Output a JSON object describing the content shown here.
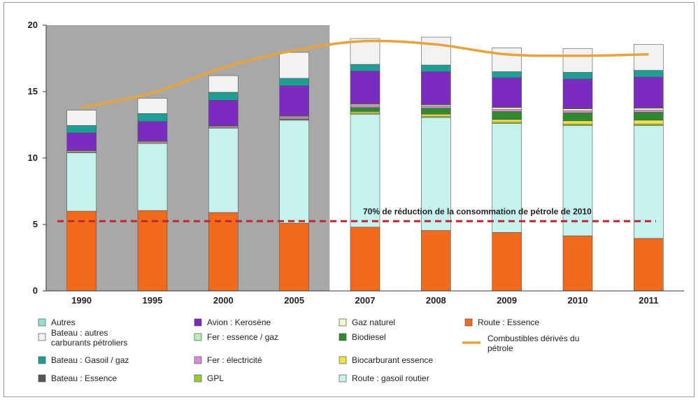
{
  "chart_data": {
    "type": "bar",
    "stacked": true,
    "categories": [
      "1990",
      "1995",
      "2000",
      "2005",
      "2007",
      "2008",
      "2009",
      "2010",
      "2011"
    ],
    "ylim": [
      0,
      20
    ],
    "yticks": [
      0,
      5,
      10,
      15,
      20
    ],
    "ytick_labels": [
      "0",
      "5",
      "10",
      "15",
      "20"
    ],
    "grid": false,
    "shaded_region_categories": [
      "1990",
      "1995",
      "2000",
      "2005"
    ],
    "series": [
      {
        "name": "Route : Essence",
        "color": "#f26a1b",
        "values": [
          6.0,
          6.05,
          5.9,
          5.1,
          4.8,
          4.55,
          4.4,
          4.15,
          3.95
        ]
      },
      {
        "name": "Route : gasoil routier",
        "color": "#c6f2ee",
        "values": [
          4.4,
          5.05,
          6.35,
          7.75,
          8.5,
          8.5,
          8.2,
          8.3,
          8.5
        ]
      },
      {
        "name": "GPL",
        "color": "#9acd32",
        "values": [
          0.0,
          0.0,
          0.0,
          0.0,
          0.1,
          0.1,
          0.1,
          0.1,
          0.1
        ]
      },
      {
        "name": "Biocarburant essence",
        "color": "#f2e04a",
        "values": [
          0.05,
          0.05,
          0.05,
          0.05,
          0.1,
          0.15,
          0.2,
          0.25,
          0.3
        ]
      },
      {
        "name": "Biodiesel",
        "color": "#2f8a2f",
        "values": [
          0.0,
          0.0,
          0.0,
          0.05,
          0.3,
          0.45,
          0.6,
          0.6,
          0.6
        ]
      },
      {
        "name": "Fer : essence / gaz",
        "color": "#b6f0b6",
        "values": [
          0.0,
          0.0,
          0.0,
          0.0,
          0.0,
          0.0,
          0.0,
          0.0,
          0.0
        ]
      },
      {
        "name": "Fer : électricité",
        "color": "#d58fd6",
        "values": [
          0.1,
          0.1,
          0.1,
          0.15,
          0.15,
          0.15,
          0.15,
          0.15,
          0.15
        ]
      },
      {
        "name": "Gaz naturel",
        "color": "#f8f4c8",
        "values": [
          0.0,
          0.0,
          0.0,
          0.05,
          0.1,
          0.1,
          0.15,
          0.15,
          0.15
        ]
      },
      {
        "name": "Bateau : Essence",
        "color": "#555555",
        "values": [
          0.05,
          0.05,
          0.05,
          0.05,
          0.05,
          0.05,
          0.05,
          0.05,
          0.05
        ]
      },
      {
        "name": "Avion : Kerosène",
        "color": "#7b2bc0",
        "values": [
          1.3,
          1.45,
          1.9,
          2.25,
          2.45,
          2.45,
          2.2,
          2.2,
          2.3
        ]
      },
      {
        "name": "Bateau : Gasoil / gaz",
        "color": "#1e9e94",
        "values": [
          0.55,
          0.6,
          0.6,
          0.55,
          0.5,
          0.5,
          0.45,
          0.5,
          0.5
        ]
      },
      {
        "name": "Autres",
        "color": "#8fe3d6",
        "values": [
          0.0,
          0.0,
          0.0,
          0.0,
          0.0,
          0.0,
          0.0,
          0.0,
          0.0
        ]
      },
      {
        "name": "Bateau : autres carburants pétroliers",
        "color": "#f2f2f2",
        "values": [
          1.15,
          1.15,
          1.25,
          1.95,
          1.95,
          2.1,
          1.8,
          1.8,
          1.95
        ]
      }
    ],
    "line_series": {
      "name": "Combustibles dérivés du pétrole",
      "color": "#e8a33a",
      "values": [
        13.8,
        14.9,
        16.8,
        18.1,
        18.8,
        18.55,
        17.8,
        17.7,
        17.8
      ]
    },
    "reference_line": {
      "value": 5.25,
      "color": "#c0282d",
      "label": "70% de réduction de la consommation de pétrole de 2010"
    },
    "legend_columns": [
      [
        "Autres",
        "Bateau : autres carburants pétroliers",
        "Bateau : Gasoil / gaz",
        "Bateau : Essence"
      ],
      [
        "Avion : Kerosène",
        "Fer : essence / gaz",
        "Fer : électricité",
        "GPL"
      ],
      [
        "Gaz naturel",
        "Biodiesel",
        "Biocarburant essence",
        "Route : gasoil routier"
      ],
      [
        "Route : Essence",
        "Combustibles dérivés du pétrole"
      ]
    ],
    "legend_placement": "bottom"
  }
}
